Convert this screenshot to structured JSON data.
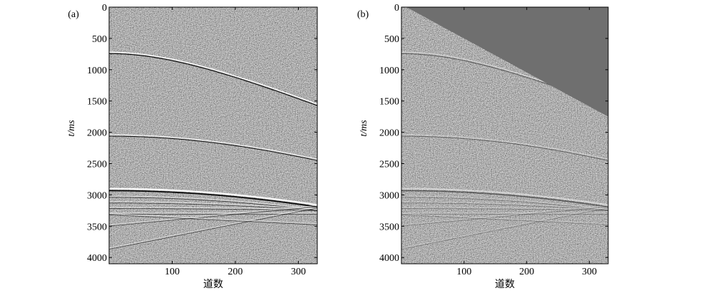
{
  "chart_data": [
    {
      "type": "image",
      "panel_label": "(a)",
      "xlabel": "道数",
      "ylabel": "t/ms",
      "xlim": [
        0,
        330
      ],
      "xticks": [
        100,
        200,
        300
      ],
      "ylim": [
        4100,
        0
      ],
      "yticks": [
        0,
        500,
        1000,
        1500,
        2000,
        2500,
        3000,
        3500,
        4000
      ]
    },
    {
      "type": "image",
      "panel_label": "(b)",
      "xlabel": "道数",
      "ylabel": "t/ms",
      "xlim": [
        0,
        330
      ],
      "xticks": [
        100,
        200,
        300
      ],
      "ylim": [
        4100,
        0
      ],
      "yticks": [
        0,
        500,
        1000,
        1500,
        2000,
        2500,
        3000,
        3500,
        4000
      ]
    }
  ]
}
